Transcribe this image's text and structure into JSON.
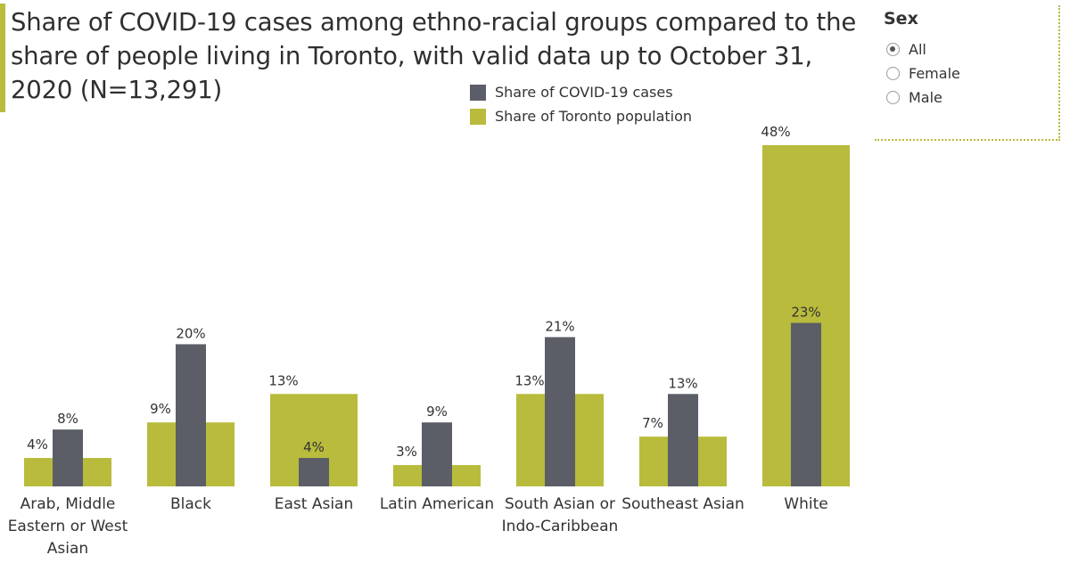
{
  "title": "Share of COVID-19 cases among ethno-racial groups compared to the share of people living in Toronto, with valid data up to October 31, 2020 (N=13,291)",
  "legend": [
    {
      "label": "Share of COVID-19 cases",
      "color": "#5b5e67"
    },
    {
      "label": "Share of Toronto population",
      "color": "#b8bb3c"
    }
  ],
  "filter": {
    "title": "Sex",
    "options": [
      "All",
      "Female",
      "Male"
    ],
    "selected": "All"
  },
  "chart_data": {
    "type": "bar",
    "categories": [
      [
        "Arab, Middle",
        "Eastern or West",
        "Asian"
      ],
      [
        "Black"
      ],
      [
        "East Asian"
      ],
      [
        "Latin American"
      ],
      [
        "South Asian or",
        "Indo-Caribbean"
      ],
      [
        "Southeast Asian"
      ],
      [
        "White"
      ]
    ],
    "series": [
      {
        "name": "Share of Toronto population",
        "values": [
          4,
          9,
          13,
          3,
          13,
          7,
          48
        ],
        "labels": [
          "4%",
          "9%",
          "13%",
          "3%",
          "13%",
          "7%",
          "48%"
        ]
      },
      {
        "name": "Share of COVID-19 cases",
        "values": [
          8,
          20,
          4,
          9,
          21,
          13,
          23
        ],
        "labels": [
          "8%",
          "20%",
          "4%",
          "9%",
          "21%",
          "13%",
          "23%"
        ]
      }
    ],
    "ylim": [
      0,
      48
    ],
    "grid": false,
    "legend_position": "top-center"
  }
}
